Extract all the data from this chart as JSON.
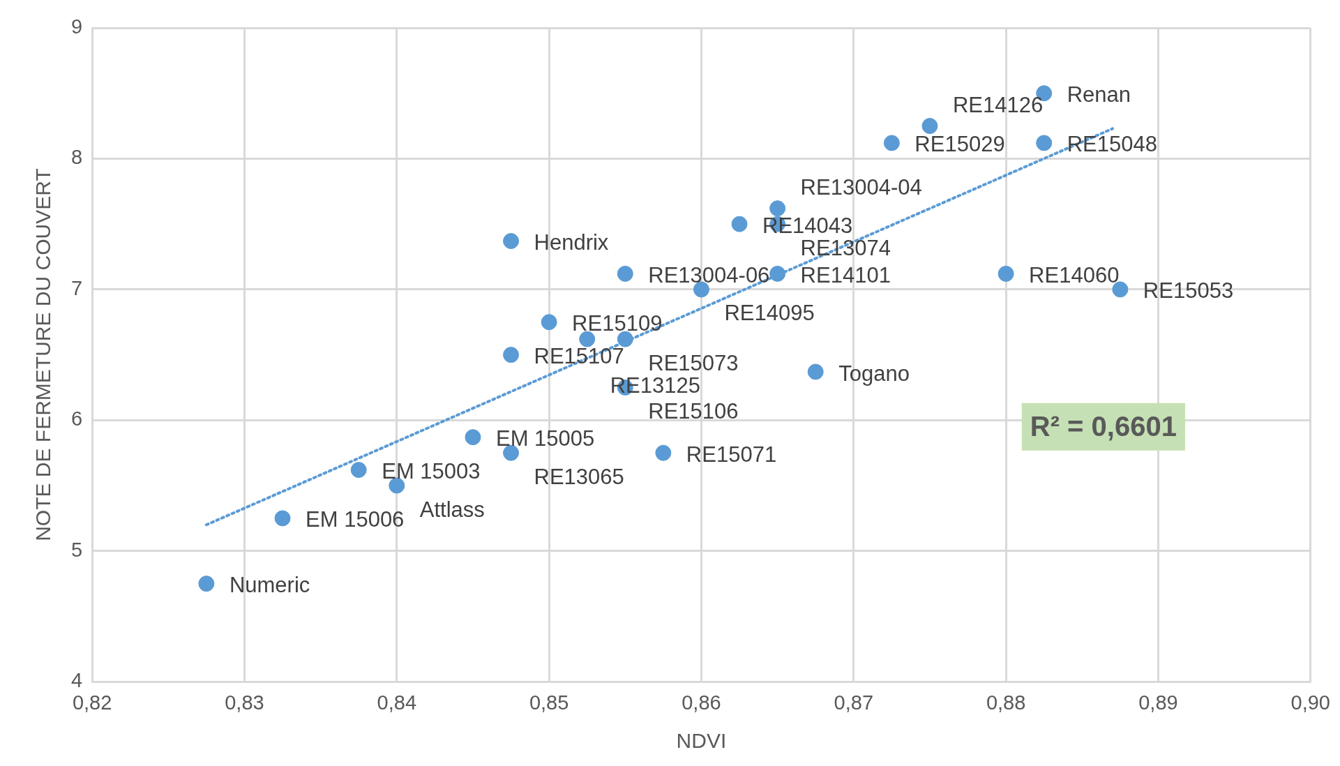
{
  "chart_data": {
    "type": "scatter",
    "xlabel": "NDVI",
    "ylabel": "NOTE DE FERMETURE DU COUVERT",
    "xlim": [
      0.82,
      0.9
    ],
    "xticks": [
      {
        "value": 0.82,
        "label": "0,82"
      },
      {
        "value": 0.83,
        "label": "0,83"
      },
      {
        "value": 0.84,
        "label": "0,84"
      },
      {
        "value": 0.85,
        "label": "0,85"
      },
      {
        "value": 0.86,
        "label": "0,86"
      },
      {
        "value": 0.87,
        "label": "0,87"
      },
      {
        "value": 0.88,
        "label": "0,88"
      },
      {
        "value": 0.89,
        "label": "0,89"
      },
      {
        "value": 0.9,
        "label": "0,90"
      }
    ],
    "ylim": [
      4,
      9
    ],
    "yticks": [
      4,
      5,
      6,
      7,
      8,
      9
    ],
    "grid": true,
    "legend": false,
    "marker": "circle",
    "annotations": [
      "R² = 0,6601"
    ],
    "series": [
      {
        "color": "#5b9bd5",
        "x": [
          0.8275,
          0.8325,
          0.8375,
          0.84,
          0.845,
          0.8475,
          0.8575,
          0.8475,
          0.8475,
          0.85,
          0.8525,
          0.855,
          0.855,
          0.855,
          0.86,
          0.865,
          0.8625,
          0.865,
          0.865,
          0.8675,
          0.8725,
          0.875,
          0.8825,
          0.8825,
          0.88,
          0.8875
        ],
        "values": [
          4.75,
          5.25,
          5.62,
          5.5,
          5.87,
          5.75,
          5.75,
          6.5,
          7.37,
          6.75,
          6.62,
          6.62,
          6.25,
          7.12,
          7.0,
          7.12,
          7.5,
          7.5,
          7.62,
          6.37,
          8.12,
          8.25,
          8.5,
          8.12,
          7.12,
          7.0
        ],
        "value_labels": [
          "Numeric",
          "EM 15006",
          "EM 15003",
          "Attlass",
          "EM 15005",
          "RE13065",
          "RE15071",
          "RE15107",
          "Hendrix",
          "RE15109",
          "RE13125",
          "RE15073",
          "RE15106",
          "RE13004-06",
          "RE14095",
          "RE14101",
          "RE14043",
          "RE13074",
          "RE13004-04",
          "Togano",
          "RE15029",
          "RE14126",
          "Renan",
          "RE15048",
          "RE14060",
          "RE15053"
        ]
      },
      {
        "type": "line",
        "color": "#5b9bd5",
        "line_style": "dotted",
        "marker": "none",
        "x": [
          0.8275,
          0.887
        ],
        "values": [
          5.2,
          8.23
        ]
      }
    ]
  }
}
